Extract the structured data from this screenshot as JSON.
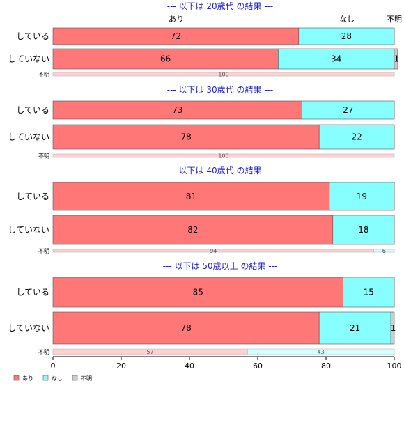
{
  "chart_data": {
    "type": "bar",
    "orientation": "horizontal-stacked-percent",
    "xlim": [
      0,
      100
    ],
    "xticks": [
      0,
      20,
      40,
      60,
      80,
      100
    ],
    "header_labels": [
      "あり",
      "なし",
      "不明"
    ],
    "colors": {
      "あり": "#ff7777",
      "なし": "#88ffff",
      "不明": "#cccccc"
    },
    "legend": {
      "position": "bottom-left",
      "entries": [
        "あり",
        "なし",
        "不明"
      ]
    },
    "panels": [
      {
        "title": "--- 以下は 20歳代 の結果 ---",
        "rows": [
          {
            "label": "している",
            "size": "large",
            "values": {
              "あり": 72,
              "なし": 28,
              "不明": 0
            }
          },
          {
            "label": "していない",
            "size": "large",
            "values": {
              "あり": 66,
              "なし": 34,
              "不明": 1
            }
          },
          {
            "label": "不明",
            "size": "small",
            "values": {
              "あり": 100,
              "なし": 0,
              "不明": 0
            }
          }
        ]
      },
      {
        "title": "--- 以下は 30歳代 の結果 ---",
        "rows": [
          {
            "label": "している",
            "size": "large",
            "values": {
              "あり": 73,
              "なし": 27,
              "不明": 0
            }
          },
          {
            "label": "していない",
            "size": "large",
            "values": {
              "あり": 78,
              "なし": 22,
              "不明": 0
            }
          },
          {
            "label": "不明",
            "size": "small",
            "values": {
              "あり": 100,
              "なし": 0,
              "不明": 0
            }
          }
        ]
      },
      {
        "title": "--- 以下は 40歳代 の結果 ---",
        "rows": [
          {
            "label": "している",
            "size": "large",
            "values": {
              "あり": 81,
              "なし": 19,
              "不明": 0
            }
          },
          {
            "label": "していない",
            "size": "large",
            "values": {
              "あり": 82,
              "なし": 18,
              "不明": 0
            }
          },
          {
            "label": "不明",
            "size": "small",
            "values": {
              "あり": 94,
              "なし": 6,
              "不明": 0
            }
          }
        ]
      },
      {
        "title": "--- 以下は 50歳以上 の結果 ---",
        "rows": [
          {
            "label": "している",
            "size": "large",
            "values": {
              "あり": 85,
              "なし": 15,
              "不明": 0
            }
          },
          {
            "label": "していない",
            "size": "large",
            "values": {
              "あり": 78,
              "なし": 21,
              "不明": 1
            }
          },
          {
            "label": "不明",
            "size": "small",
            "values": {
              "あり": 57,
              "なし": 43,
              "不明": 0
            }
          }
        ]
      }
    ]
  }
}
